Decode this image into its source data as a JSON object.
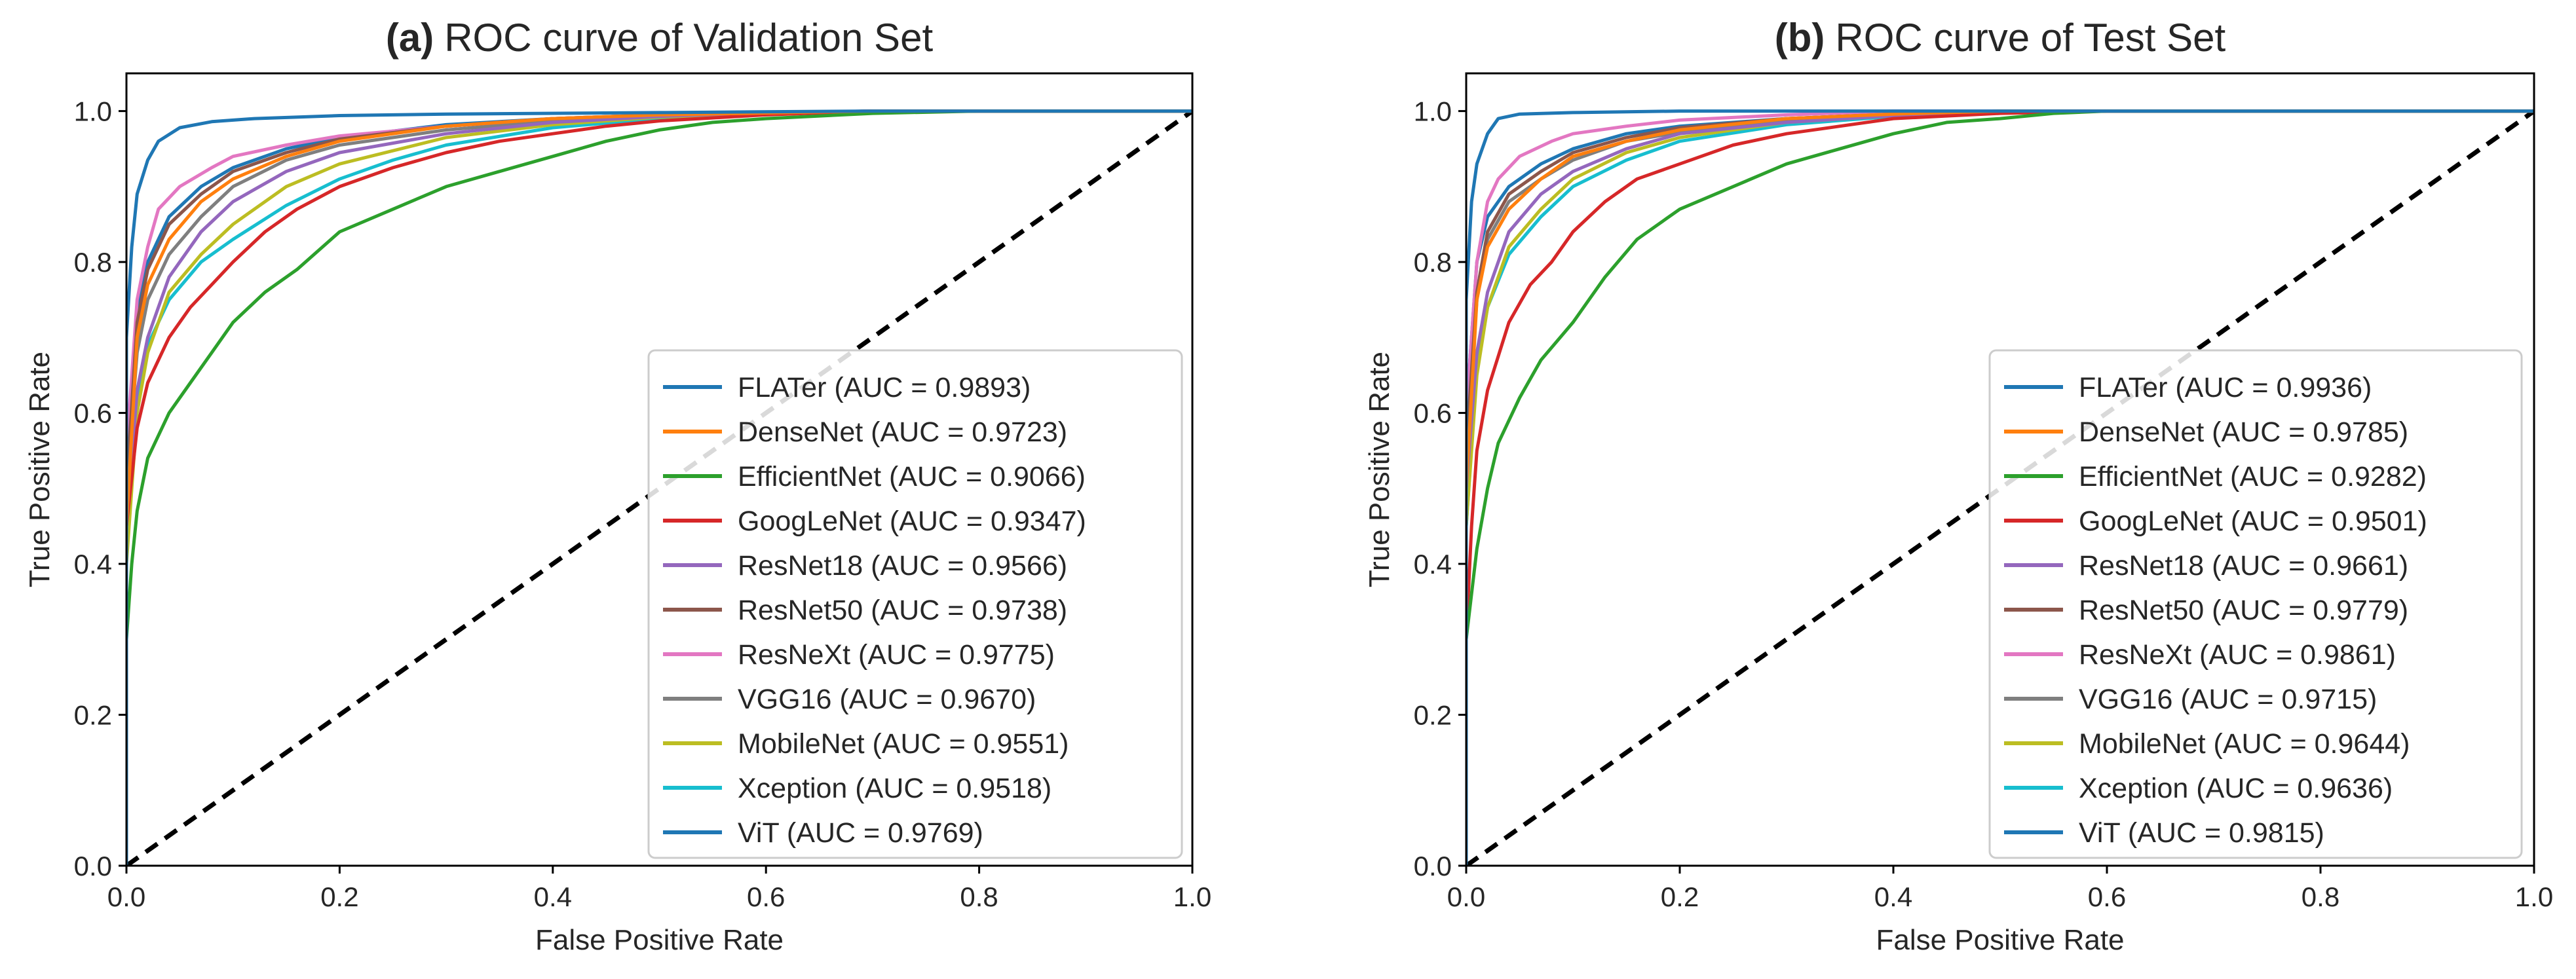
{
  "chart_data": [
    {
      "type": "line",
      "title_prefix": "(a)",
      "title": "ROC curve of Validation Set",
      "xlabel": "False Positive Rate",
      "ylabel": "True Positive Rate",
      "xlim": [
        0.0,
        1.0
      ],
      "ylim": [
        0.0,
        1.05
      ],
      "xticks": [
        0.0,
        0.2,
        0.4,
        0.6,
        0.8,
        1.0
      ],
      "yticks": [
        0.0,
        0.2,
        0.4,
        0.6,
        0.8,
        1.0
      ],
      "xtick_labels": [
        "0.0",
        "0.2",
        "0.4",
        "0.6",
        "0.8",
        "1.0"
      ],
      "ytick_labels": [
        "0.0",
        "0.2",
        "0.4",
        "0.6",
        "0.8",
        "1.0"
      ],
      "grid": false,
      "legend_position": "lower-right",
      "diagonal": {
        "name": "chance",
        "x": [
          0,
          1
        ],
        "y": [
          0,
          1
        ],
        "style": "dashed",
        "color": "#000000"
      },
      "series": [
        {
          "name": "FLATer",
          "label": "FLATer (AUC = 0.9893)",
          "color": "#1f77b4",
          "x": [
            0,
            0,
            0.005,
            0.01,
            0.02,
            0.03,
            0.05,
            0.08,
            0.12,
            0.2,
            0.3,
            0.5,
            0.7,
            1.0
          ],
          "y": [
            0,
            0.7,
            0.82,
            0.89,
            0.935,
            0.96,
            0.978,
            0.986,
            0.99,
            0.994,
            0.996,
            0.998,
            1.0,
            1.0
          ]
        },
        {
          "name": "DenseNet",
          "label": "DenseNet (AUC = 0.9723)",
          "color": "#ff7f0e",
          "x": [
            0,
            0,
            0.01,
            0.02,
            0.04,
            0.07,
            0.1,
            0.15,
            0.2,
            0.3,
            0.4,
            0.5,
            0.7,
            1.0
          ],
          "y": [
            0,
            0.45,
            0.7,
            0.77,
            0.83,
            0.88,
            0.91,
            0.94,
            0.96,
            0.98,
            0.99,
            0.995,
            1.0,
            1.0
          ]
        },
        {
          "name": "EfficientNet",
          "label": "EfficientNet (AUC = 0.9066)",
          "color": "#2ca02c",
          "x": [
            0,
            0,
            0.005,
            0.01,
            0.02,
            0.04,
            0.06,
            0.08,
            0.1,
            0.13,
            0.16,
            0.2,
            0.25,
            0.3,
            0.35,
            0.4,
            0.45,
            0.5,
            0.55,
            0.6,
            0.7,
            0.8,
            1.0
          ],
          "y": [
            0,
            0.3,
            0.4,
            0.47,
            0.54,
            0.6,
            0.64,
            0.68,
            0.72,
            0.76,
            0.79,
            0.84,
            0.87,
            0.9,
            0.92,
            0.94,
            0.96,
            0.975,
            0.985,
            0.99,
            0.997,
            1.0,
            1.0
          ]
        },
        {
          "name": "GoogLeNet",
          "label": "GoogLeNet (AUC = 0.9347)",
          "color": "#d62728",
          "x": [
            0,
            0,
            0.01,
            0.02,
            0.04,
            0.06,
            0.08,
            0.1,
            0.13,
            0.16,
            0.2,
            0.25,
            0.3,
            0.35,
            0.4,
            0.45,
            0.5,
            0.6,
            0.7,
            1.0
          ],
          "y": [
            0,
            0.45,
            0.58,
            0.64,
            0.7,
            0.74,
            0.77,
            0.8,
            0.84,
            0.87,
            0.9,
            0.925,
            0.945,
            0.96,
            0.97,
            0.98,
            0.987,
            0.995,
            1.0,
            1.0
          ]
        },
        {
          "name": "ResNet18",
          "label": "ResNet18 (AUC = 0.9566)",
          "color": "#9467bd",
          "x": [
            0,
            0,
            0.01,
            0.02,
            0.04,
            0.07,
            0.1,
            0.15,
            0.2,
            0.3,
            0.4,
            0.5,
            0.6,
            0.7,
            1.0
          ],
          "y": [
            0,
            0.45,
            0.63,
            0.7,
            0.78,
            0.84,
            0.88,
            0.92,
            0.945,
            0.97,
            0.985,
            0.993,
            0.998,
            1.0,
            1.0
          ]
        },
        {
          "name": "ResNet50",
          "label": "ResNet50 (AUC = 0.9738)",
          "color": "#8c564b",
          "x": [
            0,
            0,
            0.01,
            0.02,
            0.04,
            0.07,
            0.1,
            0.15,
            0.2,
            0.3,
            0.4,
            0.5,
            0.7,
            1.0
          ],
          "y": [
            0,
            0.5,
            0.72,
            0.79,
            0.85,
            0.89,
            0.92,
            0.945,
            0.963,
            0.98,
            0.99,
            0.995,
            1.0,
            1.0
          ]
        },
        {
          "name": "ResNeXt",
          "label": "ResNeXt (AUC = 0.9775)",
          "color": "#e377c2",
          "x": [
            0,
            0,
            0.01,
            0.02,
            0.03,
            0.05,
            0.08,
            0.1,
            0.15,
            0.2,
            0.3,
            0.4,
            0.5,
            0.7,
            1.0
          ],
          "y": [
            0,
            0.55,
            0.75,
            0.82,
            0.87,
            0.9,
            0.925,
            0.94,
            0.955,
            0.967,
            0.98,
            0.99,
            0.995,
            1.0,
            1.0
          ]
        },
        {
          "name": "VGG16",
          "label": "VGG16 (AUC = 0.9670)",
          "color": "#7f7f7f",
          "x": [
            0,
            0,
            0.01,
            0.02,
            0.04,
            0.07,
            0.1,
            0.15,
            0.2,
            0.3,
            0.4,
            0.5,
            0.6,
            0.7,
            1.0
          ],
          "y": [
            0,
            0.5,
            0.68,
            0.75,
            0.81,
            0.86,
            0.9,
            0.935,
            0.955,
            0.975,
            0.987,
            0.994,
            0.998,
            1.0,
            1.0
          ]
        },
        {
          "name": "MobileNet",
          "label": "MobileNet (AUC = 0.9551)",
          "color": "#bcbd22",
          "x": [
            0,
            0,
            0.01,
            0.02,
            0.04,
            0.07,
            0.1,
            0.15,
            0.2,
            0.3,
            0.4,
            0.5,
            0.6,
            0.7,
            1.0
          ],
          "y": [
            0,
            0.4,
            0.6,
            0.68,
            0.76,
            0.81,
            0.85,
            0.9,
            0.93,
            0.965,
            0.982,
            0.992,
            0.997,
            1.0,
            1.0
          ]
        },
        {
          "name": "Xception",
          "label": "Xception (AUC = 0.9518)",
          "color": "#17becf",
          "x": [
            0,
            0,
            0.01,
            0.02,
            0.04,
            0.07,
            0.1,
            0.15,
            0.2,
            0.25,
            0.3,
            0.4,
            0.5,
            0.6,
            0.7,
            1.0
          ],
          "y": [
            0,
            0.45,
            0.62,
            0.69,
            0.75,
            0.8,
            0.83,
            0.875,
            0.91,
            0.935,
            0.955,
            0.978,
            0.99,
            0.997,
            1.0,
            1.0
          ]
        },
        {
          "name": "ViT",
          "label": "ViT (AUC = 0.9769)",
          "color": "#1f77b4",
          "x": [
            0,
            0,
            0.01,
            0.02,
            0.04,
            0.07,
            0.1,
            0.15,
            0.2,
            0.3,
            0.4,
            0.5,
            0.7,
            1.0
          ],
          "y": [
            0,
            0.5,
            0.74,
            0.8,
            0.86,
            0.9,
            0.925,
            0.95,
            0.965,
            0.982,
            0.99,
            0.995,
            1.0,
            1.0
          ]
        }
      ]
    },
    {
      "type": "line",
      "title_prefix": "(b)",
      "title": "ROC curve of Test Set",
      "xlabel": "False Positive Rate",
      "ylabel": "True Positive Rate",
      "xlim": [
        0.0,
        1.0
      ],
      "ylim": [
        0.0,
        1.05
      ],
      "xticks": [
        0.0,
        0.2,
        0.4,
        0.6,
        0.8,
        1.0
      ],
      "yticks": [
        0.0,
        0.2,
        0.4,
        0.6,
        0.8,
        1.0
      ],
      "xtick_labels": [
        "0.0",
        "0.2",
        "0.4",
        "0.6",
        "0.8",
        "1.0"
      ],
      "ytick_labels": [
        "0.0",
        "0.2",
        "0.4",
        "0.6",
        "0.8",
        "1.0"
      ],
      "grid": false,
      "legend_position": "lower-right",
      "diagonal": {
        "name": "chance",
        "x": [
          0,
          1
        ],
        "y": [
          0,
          1
        ],
        "style": "dashed",
        "color": "#000000"
      },
      "series": [
        {
          "name": "FLATer",
          "label": "FLATer (AUC = 0.9936)",
          "color": "#1f77b4",
          "x": [
            0,
            0,
            0.005,
            0.01,
            0.02,
            0.03,
            0.05,
            0.1,
            0.2,
            0.4,
            1.0
          ],
          "y": [
            0,
            0.75,
            0.88,
            0.93,
            0.97,
            0.99,
            0.996,
            0.998,
            1.0,
            1.0,
            1.0
          ]
        },
        {
          "name": "DenseNet",
          "label": "DenseNet (AUC = 0.9785)",
          "color": "#ff7f0e",
          "x": [
            0,
            0,
            0.01,
            0.02,
            0.04,
            0.07,
            0.1,
            0.15,
            0.2,
            0.3,
            0.4,
            0.5,
            1.0
          ],
          "y": [
            0,
            0.5,
            0.75,
            0.82,
            0.87,
            0.91,
            0.94,
            0.96,
            0.975,
            0.99,
            0.996,
            1.0,
            1.0
          ]
        },
        {
          "name": "EfficientNet",
          "label": "EfficientNet (AUC = 0.9282)",
          "color": "#2ca02c",
          "x": [
            0,
            0,
            0.01,
            0.02,
            0.03,
            0.05,
            0.07,
            0.1,
            0.13,
            0.16,
            0.2,
            0.25,
            0.3,
            0.35,
            0.4,
            0.45,
            0.5,
            0.55,
            0.6,
            1.0
          ],
          "y": [
            0,
            0.3,
            0.42,
            0.5,
            0.56,
            0.62,
            0.67,
            0.72,
            0.78,
            0.83,
            0.87,
            0.9,
            0.93,
            0.95,
            0.97,
            0.985,
            0.99,
            0.997,
            1.0,
            1.0
          ]
        },
        {
          "name": "GoogLeNet",
          "label": "GoogLeNet (AUC = 0.9501)",
          "color": "#d62728",
          "x": [
            0,
            0,
            0.005,
            0.01,
            0.02,
            0.04,
            0.06,
            0.08,
            0.1,
            0.13,
            0.16,
            0.2,
            0.25,
            0.3,
            0.35,
            0.4,
            0.5,
            0.6,
            1.0
          ],
          "y": [
            0,
            0.3,
            0.45,
            0.55,
            0.63,
            0.72,
            0.77,
            0.8,
            0.84,
            0.88,
            0.91,
            0.93,
            0.955,
            0.97,
            0.98,
            0.99,
            0.997,
            1.0,
            1.0
          ]
        },
        {
          "name": "ResNet18",
          "label": "ResNet18 (AUC = 0.9661)",
          "color": "#9467bd",
          "x": [
            0,
            0,
            0.01,
            0.02,
            0.04,
            0.07,
            0.1,
            0.15,
            0.2,
            0.3,
            0.4,
            0.5,
            0.6,
            1.0
          ],
          "y": [
            0,
            0.5,
            0.68,
            0.76,
            0.84,
            0.89,
            0.92,
            0.95,
            0.97,
            0.985,
            0.994,
            0.998,
            1.0,
            1.0
          ]
        },
        {
          "name": "ResNet50",
          "label": "ResNet50 (AUC = 0.9779)",
          "color": "#8c564b",
          "x": [
            0,
            0,
            0.01,
            0.02,
            0.04,
            0.07,
            0.1,
            0.15,
            0.2,
            0.3,
            0.4,
            0.5,
            1.0
          ],
          "y": [
            0,
            0.55,
            0.76,
            0.84,
            0.89,
            0.92,
            0.945,
            0.965,
            0.978,
            0.99,
            0.996,
            1.0,
            1.0
          ]
        },
        {
          "name": "ResNeXt",
          "label": "ResNeXt (AUC = 0.9861)",
          "color": "#e377c2",
          "x": [
            0,
            0,
            0.01,
            0.02,
            0.03,
            0.05,
            0.08,
            0.1,
            0.15,
            0.2,
            0.3,
            0.4,
            1.0
          ],
          "y": [
            0,
            0.6,
            0.8,
            0.88,
            0.91,
            0.94,
            0.96,
            0.97,
            0.98,
            0.988,
            0.995,
            1.0,
            1.0
          ]
        },
        {
          "name": "VGG16",
          "label": "VGG16 (AUC = 0.9715)",
          "color": "#7f7f7f",
          "x": [
            0,
            0,
            0.01,
            0.02,
            0.04,
            0.07,
            0.1,
            0.15,
            0.2,
            0.3,
            0.4,
            0.5,
            0.6,
            1.0
          ],
          "y": [
            0,
            0.55,
            0.75,
            0.83,
            0.88,
            0.91,
            0.935,
            0.96,
            0.972,
            0.987,
            0.995,
            0.998,
            1.0,
            1.0
          ]
        },
        {
          "name": "MobileNet",
          "label": "MobileNet (AUC = 0.9644)",
          "color": "#bcbd22",
          "x": [
            0,
            0,
            0.01,
            0.02,
            0.04,
            0.07,
            0.1,
            0.15,
            0.2,
            0.3,
            0.4,
            0.5,
            0.6,
            1.0
          ],
          "y": [
            0,
            0.45,
            0.65,
            0.74,
            0.82,
            0.87,
            0.91,
            0.945,
            0.965,
            0.985,
            0.994,
            0.998,
            1.0,
            1.0
          ]
        },
        {
          "name": "Xception",
          "label": "Xception (AUC = 0.9636)",
          "color": "#17becf",
          "x": [
            0,
            0,
            0.01,
            0.02,
            0.04,
            0.07,
            0.1,
            0.15,
            0.2,
            0.3,
            0.4,
            0.5,
            0.6,
            1.0
          ],
          "y": [
            0,
            0.45,
            0.66,
            0.74,
            0.81,
            0.86,
            0.9,
            0.935,
            0.96,
            0.982,
            0.993,
            0.998,
            1.0,
            1.0
          ]
        },
        {
          "name": "ViT",
          "label": "ViT (AUC = 0.9815)",
          "color": "#1f77b4",
          "x": [
            0,
            0,
            0.01,
            0.02,
            0.04,
            0.07,
            0.1,
            0.15,
            0.2,
            0.3,
            0.4,
            0.5,
            1.0
          ],
          "y": [
            0,
            0.6,
            0.8,
            0.86,
            0.9,
            0.93,
            0.95,
            0.97,
            0.98,
            0.99,
            0.996,
            1.0,
            1.0
          ]
        }
      ]
    }
  ]
}
